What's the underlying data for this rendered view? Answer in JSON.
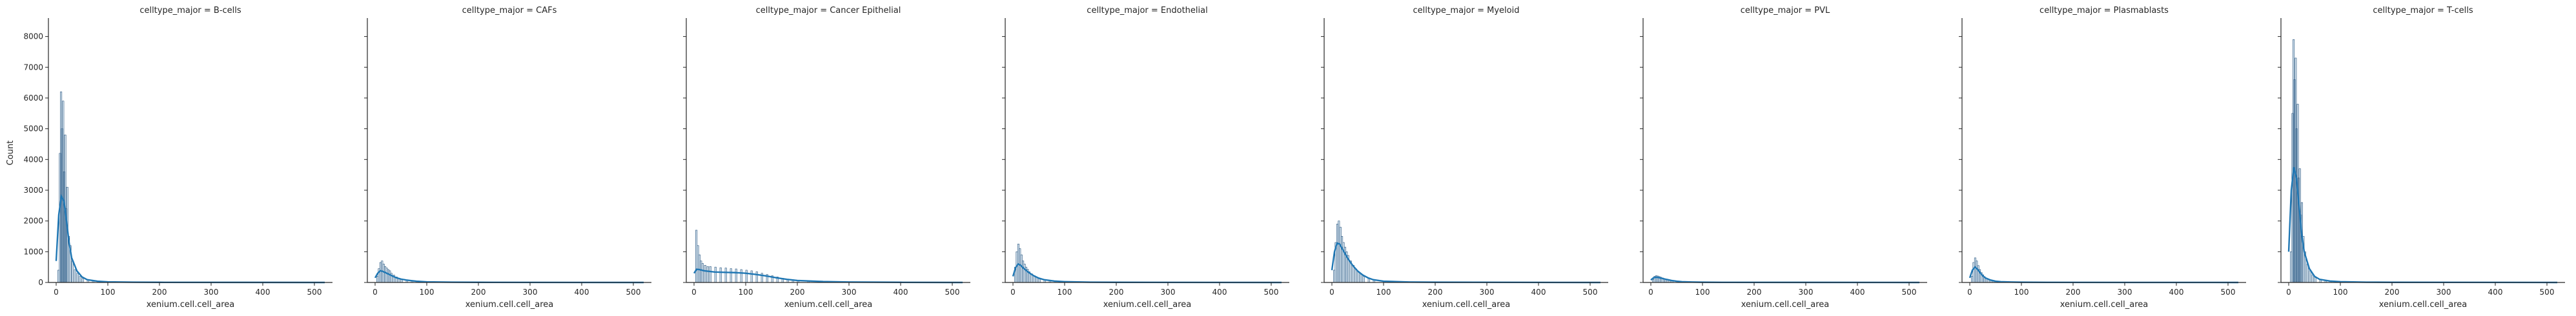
{
  "chart_data": {
    "type": "bar",
    "chart_kind": "faceted histogram with kde",
    "xlabel": "xenium.cell.cell_area",
    "ylabel": "Count",
    "xlim": [
      -15,
      535
    ],
    "ylim": [
      0,
      8600
    ],
    "x_ticks": [
      0,
      100,
      200,
      300,
      400,
      500
    ],
    "y_ticks": [
      0,
      1000,
      2000,
      3000,
      4000,
      5000,
      6000,
      7000,
      8000
    ],
    "y_axis_shared": true,
    "grid": false,
    "legend": "none",
    "bar_color": "#a9c6de",
    "line_color": "#1f77b4",
    "panels": [
      {
        "title": "celltype_major = B-cells",
        "bins": [
          [
            3,
            400
          ],
          [
            6,
            4200
          ],
          [
            8,
            6200
          ],
          [
            10,
            5000
          ],
          [
            12,
            5900
          ],
          [
            14,
            3600
          ],
          [
            16,
            4800
          ],
          [
            18,
            2400
          ],
          [
            20,
            3100
          ],
          [
            23,
            1500
          ],
          [
            26,
            1200
          ],
          [
            30,
            700
          ],
          [
            35,
            420
          ],
          [
            40,
            300
          ],
          [
            45,
            200
          ],
          [
            50,
            130
          ],
          [
            60,
            80
          ],
          [
            70,
            50
          ],
          [
            80,
            30
          ],
          [
            100,
            20
          ],
          [
            150,
            10
          ],
          [
            200,
            5
          ],
          [
            300,
            3
          ],
          [
            500,
            2
          ]
        ],
        "kde": [
          [
            0,
            700
          ],
          [
            5,
            2200
          ],
          [
            10,
            2800
          ],
          [
            15,
            2650
          ],
          [
            20,
            2000
          ],
          [
            25,
            1300
          ],
          [
            30,
            800
          ],
          [
            40,
            380
          ],
          [
            50,
            180
          ],
          [
            60,
            90
          ],
          [
            80,
            40
          ],
          [
            100,
            20
          ],
          [
            150,
            10
          ],
          [
            200,
            5
          ],
          [
            520,
            0
          ]
        ]
      },
      {
        "title": "celltype_major = CAFs",
        "bins": [
          [
            3,
            200
          ],
          [
            6,
            450
          ],
          [
            9,
            650
          ],
          [
            12,
            700
          ],
          [
            15,
            600
          ],
          [
            18,
            520
          ],
          [
            21,
            470
          ],
          [
            24,
            420
          ],
          [
            27,
            380
          ],
          [
            30,
            300
          ],
          [
            35,
            240
          ],
          [
            40,
            180
          ],
          [
            45,
            140
          ],
          [
            50,
            110
          ],
          [
            60,
            80
          ],
          [
            70,
            50
          ],
          [
            80,
            35
          ],
          [
            100,
            20
          ],
          [
            150,
            10
          ],
          [
            200,
            5
          ],
          [
            300,
            3
          ],
          [
            500,
            2
          ]
        ],
        "kde": [
          [
            0,
            150
          ],
          [
            5,
            300
          ],
          [
            10,
            380
          ],
          [
            15,
            360
          ],
          [
            20,
            320
          ],
          [
            30,
            240
          ],
          [
            40,
            160
          ],
          [
            50,
            110
          ],
          [
            60,
            80
          ],
          [
            80,
            40
          ],
          [
            100,
            20
          ],
          [
            150,
            10
          ],
          [
            200,
            5
          ],
          [
            520,
            0
          ]
        ]
      },
      {
        "title": "celltype_major = Cancer Epithelial",
        "bins": [
          [
            3,
            1700
          ],
          [
            6,
            1200
          ],
          [
            9,
            900
          ],
          [
            12,
            700
          ],
          [
            15,
            620
          ],
          [
            20,
            560
          ],
          [
            25,
            520
          ],
          [
            30,
            520
          ],
          [
            40,
            500
          ],
          [
            50,
            480
          ],
          [
            60,
            470
          ],
          [
            70,
            450
          ],
          [
            80,
            440
          ],
          [
            90,
            420
          ],
          [
            100,
            400
          ],
          [
            110,
            380
          ],
          [
            120,
            350
          ],
          [
            130,
            300
          ],
          [
            140,
            260
          ],
          [
            150,
            220
          ],
          [
            160,
            180
          ],
          [
            170,
            140
          ],
          [
            180,
            110
          ],
          [
            190,
            90
          ],
          [
            200,
            70
          ],
          [
            220,
            50
          ],
          [
            250,
            30
          ],
          [
            300,
            15
          ],
          [
            400,
            8
          ],
          [
            500,
            3
          ]
        ],
        "kde": [
          [
            0,
            300
          ],
          [
            5,
            430
          ],
          [
            10,
            420
          ],
          [
            20,
            380
          ],
          [
            40,
            340
          ],
          [
            60,
            330
          ],
          [
            80,
            320
          ],
          [
            100,
            300
          ],
          [
            120,
            260
          ],
          [
            140,
            210
          ],
          [
            160,
            150
          ],
          [
            180,
            100
          ],
          [
            200,
            65
          ],
          [
            250,
            30
          ],
          [
            300,
            15
          ],
          [
            400,
            5
          ],
          [
            520,
            0
          ]
        ]
      },
      {
        "title": "celltype_major = Endothelial",
        "bins": [
          [
            3,
            500
          ],
          [
            6,
            1000
          ],
          [
            9,
            1250
          ],
          [
            12,
            1100
          ],
          [
            15,
            900
          ],
          [
            18,
            700
          ],
          [
            21,
            600
          ],
          [
            24,
            500
          ],
          [
            27,
            430
          ],
          [
            30,
            350
          ],
          [
            35,
            280
          ],
          [
            40,
            220
          ],
          [
            45,
            170
          ],
          [
            50,
            130
          ],
          [
            60,
            90
          ],
          [
            70,
            60
          ],
          [
            80,
            40
          ],
          [
            100,
            25
          ],
          [
            150,
            10
          ],
          [
            200,
            5
          ],
          [
            300,
            3
          ],
          [
            500,
            2
          ]
        ],
        "kde": [
          [
            0,
            200
          ],
          [
            5,
            480
          ],
          [
            10,
            600
          ],
          [
            15,
            560
          ],
          [
            20,
            470
          ],
          [
            30,
            330
          ],
          [
            40,
            220
          ],
          [
            50,
            140
          ],
          [
            60,
            90
          ],
          [
            80,
            45
          ],
          [
            100,
            25
          ],
          [
            150,
            10
          ],
          [
            200,
            5
          ],
          [
            520,
            0
          ]
        ]
      },
      {
        "title": "celltype_major = Myeloid",
        "bins": [
          [
            3,
            400
          ],
          [
            6,
            1300
          ],
          [
            9,
            1900
          ],
          [
            12,
            2000
          ],
          [
            15,
            1800
          ],
          [
            18,
            1500
          ],
          [
            21,
            1300
          ],
          [
            24,
            1150
          ],
          [
            27,
            1000
          ],
          [
            30,
            880
          ],
          [
            35,
            700
          ],
          [
            40,
            560
          ],
          [
            45,
            440
          ],
          [
            50,
            340
          ],
          [
            55,
            260
          ],
          [
            60,
            200
          ],
          [
            70,
            130
          ],
          [
            80,
            80
          ],
          [
            100,
            40
          ],
          [
            150,
            15
          ],
          [
            200,
            8
          ],
          [
            300,
            4
          ],
          [
            500,
            2
          ]
        ],
        "kde": [
          [
            0,
            400
          ],
          [
            5,
            1000
          ],
          [
            10,
            1280
          ],
          [
            15,
            1250
          ],
          [
            20,
            1100
          ],
          [
            30,
            800
          ],
          [
            40,
            560
          ],
          [
            50,
            370
          ],
          [
            60,
            240
          ],
          [
            70,
            150
          ],
          [
            80,
            90
          ],
          [
            100,
            40
          ],
          [
            150,
            15
          ],
          [
            200,
            8
          ],
          [
            520,
            0
          ]
        ]
      },
      {
        "title": "celltype_major = PVL",
        "bins": [
          [
            3,
            100
          ],
          [
            6,
            200
          ],
          [
            9,
            220
          ],
          [
            12,
            210
          ],
          [
            15,
            190
          ],
          [
            18,
            170
          ],
          [
            21,
            150
          ],
          [
            24,
            130
          ],
          [
            27,
            110
          ],
          [
            30,
            95
          ],
          [
            35,
            75
          ],
          [
            40,
            60
          ],
          [
            50,
            40
          ],
          [
            60,
            25
          ],
          [
            80,
            15
          ],
          [
            100,
            10
          ],
          [
            150,
            5
          ],
          [
            300,
            2
          ],
          [
            500,
            1
          ]
        ],
        "kde": [
          [
            0,
            80
          ],
          [
            5,
            150
          ],
          [
            10,
            170
          ],
          [
            15,
            160
          ],
          [
            20,
            140
          ],
          [
            30,
            100
          ],
          [
            40,
            65
          ],
          [
            50,
            40
          ],
          [
            60,
            25
          ],
          [
            80,
            15
          ],
          [
            100,
            8
          ],
          [
            150,
            4
          ],
          [
            520,
            0
          ]
        ]
      },
      {
        "title": "celltype_major = Plasmablasts",
        "bins": [
          [
            3,
            200
          ],
          [
            6,
            650
          ],
          [
            9,
            800
          ],
          [
            12,
            700
          ],
          [
            15,
            550
          ],
          [
            18,
            420
          ],
          [
            21,
            320
          ],
          [
            24,
            250
          ],
          [
            27,
            190
          ],
          [
            30,
            140
          ],
          [
            35,
            100
          ],
          [
            40,
            70
          ],
          [
            45,
            50
          ],
          [
            50,
            35
          ],
          [
            60,
            25
          ],
          [
            80,
            15
          ],
          [
            100,
            10
          ],
          [
            150,
            5
          ],
          [
            300,
            2
          ],
          [
            500,
            1
          ]
        ],
        "kde": [
          [
            0,
            150
          ],
          [
            5,
            400
          ],
          [
            10,
            500
          ],
          [
            15,
            430
          ],
          [
            20,
            320
          ],
          [
            25,
            220
          ],
          [
            30,
            150
          ],
          [
            40,
            80
          ],
          [
            50,
            40
          ],
          [
            60,
            25
          ],
          [
            80,
            15
          ],
          [
            100,
            8
          ],
          [
            150,
            4
          ],
          [
            520,
            0
          ]
        ]
      },
      {
        "title": "celltype_major = T-cells",
        "bins": [
          [
            3,
            1000
          ],
          [
            6,
            5500
          ],
          [
            8,
            7900
          ],
          [
            10,
            6600
          ],
          [
            12,
            7300
          ],
          [
            14,
            5000
          ],
          [
            16,
            5800
          ],
          [
            18,
            3400
          ],
          [
            20,
            3700
          ],
          [
            22,
            2200
          ],
          [
            24,
            2600
          ],
          [
            27,
            1500
          ],
          [
            30,
            1000
          ],
          [
            35,
            600
          ],
          [
            40,
            380
          ],
          [
            45,
            250
          ],
          [
            50,
            160
          ],
          [
            60,
            100
          ],
          [
            70,
            60
          ],
          [
            80,
            40
          ],
          [
            100,
            25
          ],
          [
            150,
            10
          ],
          [
            200,
            5
          ],
          [
            300,
            3
          ],
          [
            500,
            2
          ]
        ],
        "kde": [
          [
            0,
            1000
          ],
          [
            5,
            3000
          ],
          [
            10,
            3750
          ],
          [
            15,
            3400
          ],
          [
            20,
            2500
          ],
          [
            25,
            1600
          ],
          [
            30,
            1000
          ],
          [
            40,
            450
          ],
          [
            50,
            200
          ],
          [
            60,
            100
          ],
          [
            80,
            45
          ],
          [
            100,
            25
          ],
          [
            150,
            10
          ],
          [
            200,
            5
          ],
          [
            520,
            0
          ]
        ]
      }
    ]
  }
}
